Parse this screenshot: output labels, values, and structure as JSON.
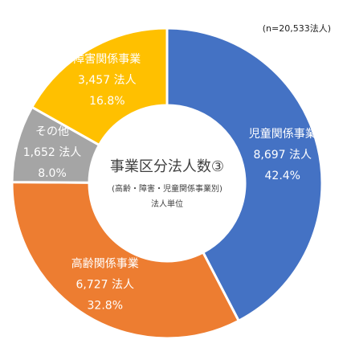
{
  "chart_data": {
    "type": "donut",
    "title": "事業区分法人数③",
    "subtitle": "(高齢・障害・児童関係事業別)",
    "unit_note": "法人単位",
    "annotation": "(n=20,533法人)",
    "categories": [
      "児童関係事業",
      "高齢関係事業",
      "その他",
      "障害関係事業"
    ],
    "values": [
      8697,
      6727,
      1652,
      3457
    ],
    "value_labels": [
      "8,697 法人",
      "6,727 法人",
      "1,652 法人",
      "3,457 法人"
    ],
    "percents": [
      42.4,
      32.8,
      8.0,
      16.8
    ],
    "percent_labels": [
      "42.4%",
      "32.8%",
      "8.0%",
      "16.8%"
    ],
    "colors": [
      "#4472c4",
      "#ed7d31",
      "#a5a5a5",
      "#ffc000"
    ]
  }
}
